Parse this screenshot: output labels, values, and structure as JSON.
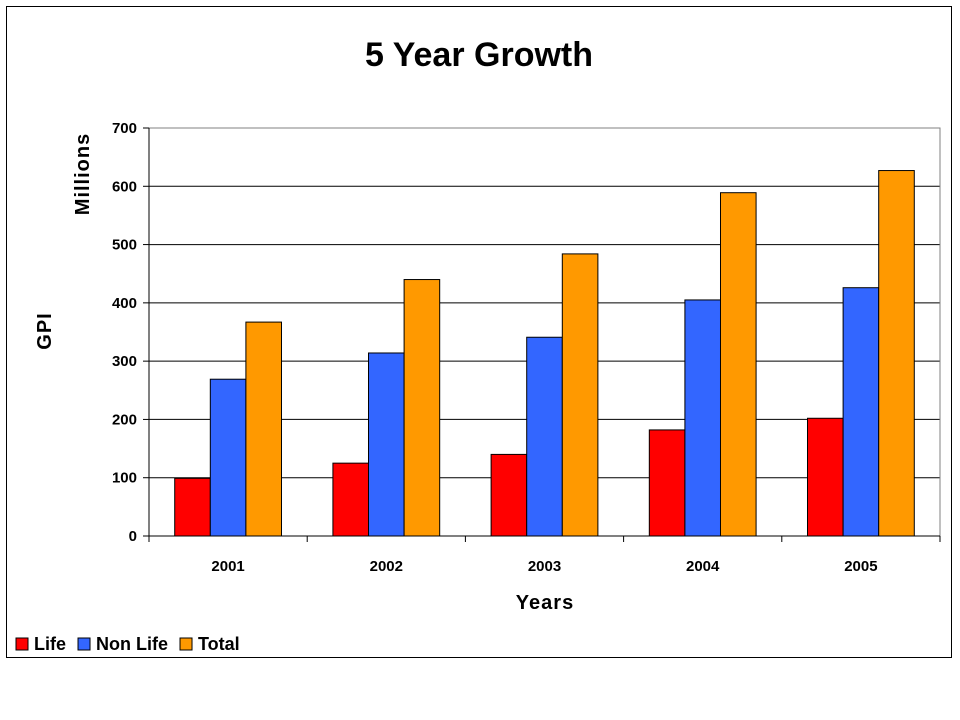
{
  "chart_data": {
    "type": "bar",
    "title": "5 Year Growth",
    "xlabel": "Years",
    "ylabel_top": "Millions",
    "ylabel_bottom": "GPI",
    "categories": [
      "2001",
      "2002",
      "2003",
      "2004",
      "2005"
    ],
    "series": [
      {
        "name": "Life",
        "color": "#ff0000",
        "values": [
          99,
          125,
          140,
          182,
          202
        ]
      },
      {
        "name": "Non Life",
        "color": "#3366ff",
        "values": [
          269,
          314,
          341,
          405,
          426
        ]
      },
      {
        "name": "Total",
        "color": "#ff9900",
        "values": [
          367,
          440,
          484,
          589,
          627
        ]
      }
    ],
    "ylim": [
      0,
      700
    ],
    "yticks": [
      "0",
      "100",
      "200",
      "300",
      "400",
      "500",
      "600",
      "700"
    ],
    "grid": true,
    "legend_position": "bottom-left"
  }
}
